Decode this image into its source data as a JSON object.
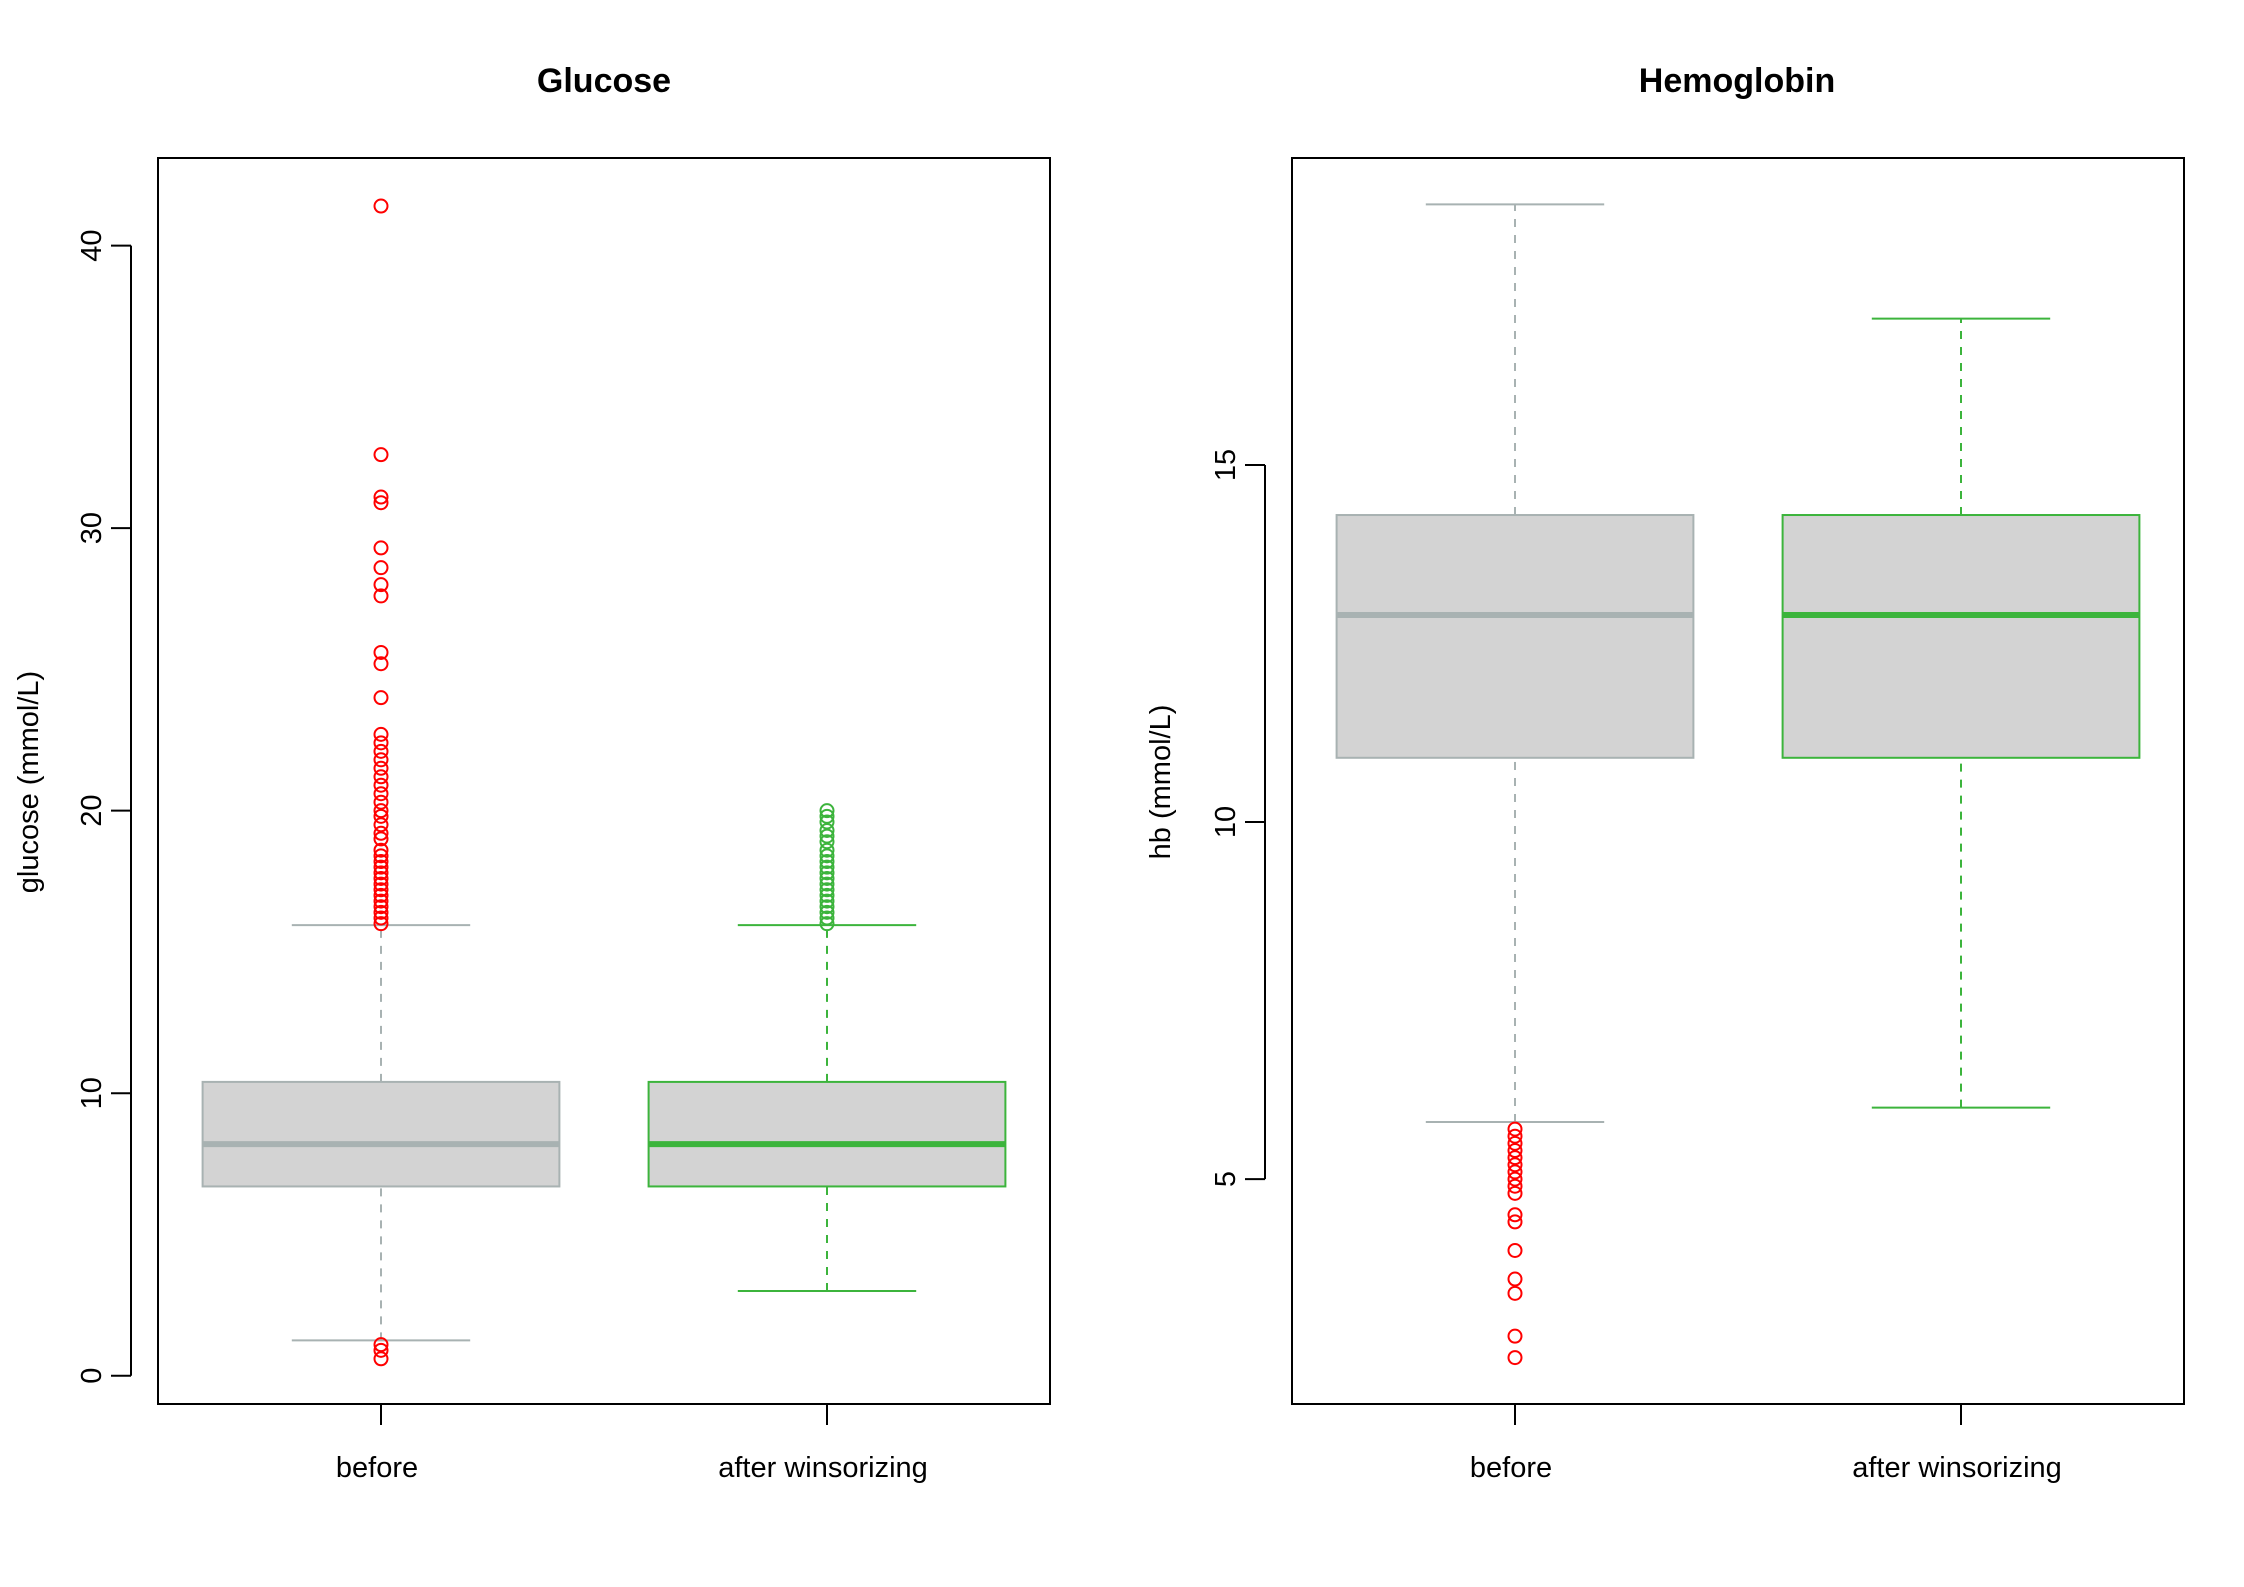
{
  "chart_data": [
    {
      "type": "boxplot",
      "title": "Glucose",
      "ylabel": "glucose (mmol/L)",
      "xlabel": "",
      "categories": [
        "before",
        "after winsorizing"
      ],
      "yticks": [
        0,
        10,
        20,
        30,
        40
      ],
      "ylim": [
        -1.0,
        43.1
      ],
      "grid": false,
      "boxes": [
        {
          "name": "before",
          "whisker_low": 1.25,
          "q1": 6.7,
          "median": 8.2,
          "q3": 10.4,
          "whisker_high": 15.95,
          "outliers": [
            0.6,
            0.9,
            1.1,
            16.0,
            16.2,
            16.4,
            16.6,
            16.8,
            17.0,
            17.2,
            17.4,
            17.6,
            17.8,
            18.0,
            18.2,
            18.4,
            18.6,
            19.0,
            19.2,
            19.5,
            19.8,
            20.0,
            20.3,
            20.6,
            20.9,
            21.2,
            21.5,
            21.8,
            22.1,
            22.4,
            22.7,
            24.0,
            25.2,
            25.6,
            27.6,
            28.0,
            28.6,
            29.3,
            30.9,
            31.1,
            32.6,
            41.4
          ],
          "color": "#A8B2B2",
          "fill": "#D3D3D3",
          "outlier_color": "#FF0000"
        },
        {
          "name": "after winsorizing",
          "whisker_low": 3.0,
          "q1": 6.7,
          "median": 8.2,
          "q3": 10.4,
          "whisker_high": 15.95,
          "outliers": [
            16.0,
            16.2,
            16.4,
            16.6,
            16.8,
            17.0,
            17.2,
            17.4,
            17.6,
            17.8,
            18.0,
            18.2,
            18.4,
            18.6,
            18.9,
            19.1,
            19.3,
            19.6,
            19.8,
            20.0
          ],
          "color": "#3CB43C",
          "fill": "#D3D3D3",
          "outlier_color": "#3CB43C"
        }
      ]
    },
    {
      "type": "boxplot",
      "title": "Hemoglobin",
      "ylabel": "hb (mmol/L)",
      "xlabel": "",
      "categories": [
        "before",
        "after winsorizing"
      ],
      "yticks": [
        5,
        10,
        15
      ],
      "ylim": [
        1.85,
        19.3
      ],
      "grid": false,
      "boxes": [
        {
          "name": "before",
          "whisker_low": 5.8,
          "q1": 10.9,
          "median": 12.9,
          "q3": 14.3,
          "whisker_high": 18.65,
          "outliers": [
            2.5,
            2.8,
            3.4,
            3.6,
            4.0,
            4.4,
            4.5,
            4.8,
            4.9,
            5.0,
            5.1,
            5.2,
            5.3,
            5.4,
            5.5,
            5.6,
            5.7
          ],
          "color": "#A8B2B2",
          "fill": "#D3D3D3",
          "outlier_color": "#FF0000"
        },
        {
          "name": "after winsorizing",
          "whisker_low": 6.0,
          "q1": 10.9,
          "median": 12.9,
          "q3": 14.3,
          "whisker_high": 17.05,
          "outliers": [],
          "color": "#3CB43C",
          "fill": "#D3D3D3",
          "outlier_color": "#3CB43C"
        }
      ]
    }
  ]
}
